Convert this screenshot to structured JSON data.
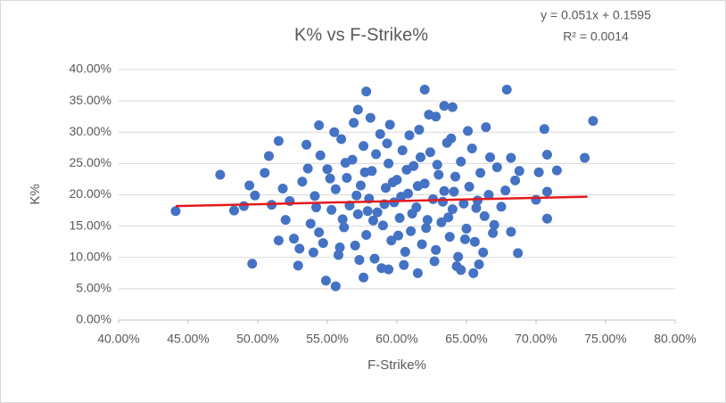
{
  "chart_data": {
    "type": "scatter",
    "title": "K%  vs F-Strike%",
    "x_label": "F-Strike%",
    "y_label": "K%",
    "equation": "y = 0.051x + 0.1595",
    "r_squared": "R² = 0.0014",
    "color": "#4472c4",
    "grid": true,
    "xlim": [
      40,
      80
    ],
    "ylim": [
      0,
      40
    ],
    "xticks": [
      {
        "value": 40,
        "label": "40.00%"
      },
      {
        "value": 45,
        "label": "45.00%"
      },
      {
        "value": 50,
        "label": "50.00%"
      },
      {
        "value": 55,
        "label": "55.00%"
      },
      {
        "value": 60,
        "label": "60.00%"
      },
      {
        "value": 65,
        "label": "65.00%"
      },
      {
        "value": 70,
        "label": "70.00%"
      },
      {
        "value": 75,
        "label": "75.00%"
      },
      {
        "value": 80,
        "label": "80.00%"
      }
    ],
    "yticks": [
      {
        "value": 0,
        "label": "0.00%"
      },
      {
        "value": 5,
        "label": "5.00%"
      },
      {
        "value": 10,
        "label": "10.00%"
      },
      {
        "value": 15,
        "label": "15.00%"
      },
      {
        "value": 20,
        "label": "20.00%"
      },
      {
        "value": 25,
        "label": "25.00%"
      },
      {
        "value": 30,
        "label": "30.00%"
      },
      {
        "value": 35,
        "label": "35.00%"
      },
      {
        "value": 40,
        "label": "40.00%"
      }
    ],
    "x": [
      44.1,
      47.3,
      48.3,
      49.0,
      49.4,
      49.6,
      49.8,
      50.5,
      50.8,
      51.0,
      51.5,
      51.5,
      52.9,
      54.9,
      55.6,
      54.4,
      57.8,
      57.2,
      62.0,
      62.8,
      63.4,
      64.0,
      67.9,
      66.4,
      68.2,
      68.8,
      70.6,
      70.8,
      70.8,
      70.8,
      71.5,
      70.2,
      70.0,
      73.5,
      74.1,
      68.7,
      68.2,
      65.5,
      64.6,
      57.6,
      61.5,
      59.4,
      53.2,
      53.8,
      54.1,
      54.5,
      54.7,
      55.0,
      55.3,
      55.6,
      55.8,
      56.0,
      56.2,
      56.4,
      56.6,
      56.8,
      57.0,
      57.2,
      57.4,
      57.6,
      57.8,
      58.0,
      58.2,
      58.4,
      58.6,
      58.8,
      59.0,
      59.2,
      59.4,
      59.6,
      59.8,
      60.0,
      60.2,
      60.4,
      60.6,
      60.8,
      61.0,
      61.2,
      61.4,
      61.6,
      61.8,
      62.0,
      62.2,
      62.4,
      62.6,
      62.8,
      63.0,
      63.2,
      63.4,
      63.6,
      63.8,
      64.0,
      64.2,
      64.4,
      64.6,
      64.8,
      65.0,
      65.2,
      65.4,
      65.6,
      65.8,
      66.0,
      66.3,
      66.6,
      66.9,
      67.2,
      67.5,
      52.6,
      52.3,
      51.8,
      52.0,
      53.5,
      54.0,
      55.5,
      56.9,
      58.1,
      59.5,
      60.9,
      62.3,
      63.9,
      65.1,
      64.3,
      62.7,
      60.5,
      58.9,
      57.3,
      55.9,
      54.4,
      53.0,
      66.2,
      67.0,
      67.8,
      68.5,
      66.7,
      65.9,
      61.7,
      60.1,
      58.5,
      57.1,
      56.1,
      55.2,
      54.2,
      53.6,
      59.1,
      60.3,
      61.1,
      62.1,
      63.3,
      64.1,
      59.7,
      58.3,
      57.7,
      61.5,
      62.9,
      63.7,
      60.7,
      59.3,
      57.9,
      56.3,
      64.9,
      65.7
    ],
    "values": [
      17.4,
      23.2,
      17.5,
      18.2,
      21.5,
      9.0,
      19.9,
      23.5,
      26.2,
      18.4,
      28.6,
      12.7,
      8.7,
      6.3,
      5.4,
      31.1,
      36.5,
      33.6,
      36.8,
      32.5,
      34.2,
      34.0,
      36.8,
      30.8,
      25.9,
      23.8,
      30.5,
      26.4,
      20.5,
      16.2,
      23.9,
      23.6,
      19.2,
      25.9,
      31.8,
      10.7,
      14.1,
      7.5,
      8.0,
      6.8,
      7.5,
      8.1,
      22.1,
      15.4,
      19.8,
      26.3,
      12.3,
      24.1,
      17.6,
      20.9,
      10.4,
      28.9,
      14.8,
      22.7,
      18.3,
      25.6,
      11.9,
      16.9,
      21.5,
      27.8,
      13.6,
      19.4,
      23.8,
      9.8,
      17.2,
      29.7,
      15.1,
      21.1,
      25.0,
      12.7,
      18.8,
      22.4,
      16.3,
      27.1,
      10.9,
      20.2,
      14.2,
      24.6,
      18.0,
      30.4,
      12.1,
      21.8,
      16.0,
      26.8,
      19.3,
      11.2,
      23.2,
      15.6,
      20.6,
      28.3,
      13.3,
      17.7,
      22.9,
      10.1,
      25.3,
      18.6,
      14.6,
      21.3,
      27.4,
      12.5,
      19.1,
      23.5,
      16.6,
      20.0,
      13.9,
      24.4,
      18.1,
      13.0,
      19.0,
      21.0,
      16.0,
      28.0,
      10.8,
      30.0,
      31.5,
      32.3,
      31.2,
      29.5,
      32.8,
      29.0,
      30.2,
      8.6,
      9.4,
      8.8,
      8.3,
      9.6,
      11.6,
      14.0,
      11.4,
      10.8,
      15.2,
      20.7,
      22.3,
      26.0,
      8.9,
      26.0,
      13.5,
      26.5,
      19.9,
      16.1,
      22.6,
      18.0,
      24.2,
      18.5,
      19.7,
      17.0,
      14.7,
      18.9,
      20.5,
      22.0,
      15.9,
      23.6,
      21.4,
      24.8,
      16.4,
      24.0,
      28.2,
      17.4,
      25.1,
      12.9,
      17.9
    ],
    "trendline": {
      "color": "#e31a1c",
      "x": [
        44.1,
        73.7
      ],
      "values": [
        18.2,
        19.7
      ]
    }
  }
}
